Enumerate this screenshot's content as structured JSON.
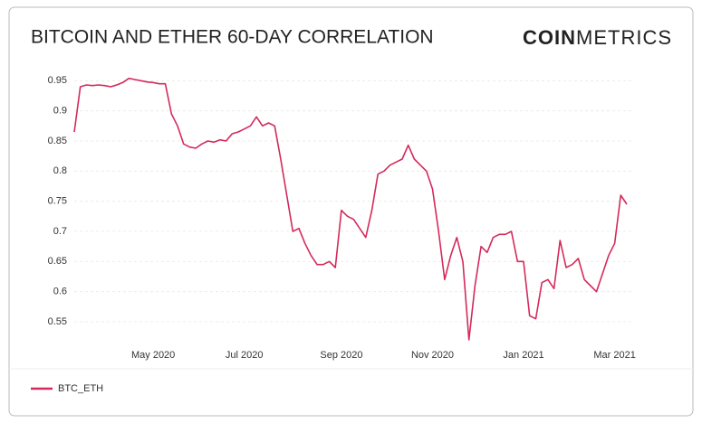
{
  "chart_data": {
    "type": "line",
    "title": "BITCOIN AND ETHER 60-DAY CORRELATION",
    "brand": {
      "bold": "COIN",
      "light": "METRICS"
    },
    "categories": [
      null,
      null,
      null,
      null,
      null,
      null,
      null,
      null,
      null,
      null,
      null,
      null,
      null,
      "May 2020",
      null,
      null,
      null,
      null,
      null,
      null,
      null,
      null,
      null,
      null,
      null,
      null,
      null,
      null,
      "Jul 2020",
      null,
      null,
      null,
      null,
      null,
      null,
      null,
      null,
      null,
      null,
      null,
      null,
      null,
      null,
      null,
      "Sep 2020",
      null,
      null,
      null,
      null,
      null,
      null,
      null,
      null,
      null,
      null,
      null,
      null,
      null,
      null,
      "Nov 2020",
      null,
      null,
      null,
      null,
      null,
      null,
      null,
      null,
      null,
      null,
      null,
      null,
      null,
      null,
      "Jan 2021",
      null,
      null,
      null,
      null,
      null,
      null,
      null,
      null,
      null,
      null,
      null,
      null,
      null,
      null,
      "Mar 2021",
      null,
      null
    ],
    "series": [
      {
        "name": "BTC_ETH",
        "color": "#d42a5b",
        "values": [
          0.865,
          0.94,
          0.943,
          0.942,
          0.943,
          0.942,
          0.94,
          0.943,
          0.947,
          0.954,
          0.952,
          0.95,
          0.948,
          0.947,
          0.945,
          0.945,
          0.895,
          0.875,
          0.845,
          0.84,
          0.838,
          0.845,
          0.85,
          0.848,
          0.852,
          0.85,
          0.862,
          0.865,
          0.87,
          0.875,
          0.89,
          0.875,
          0.88,
          0.875,
          0.82,
          0.76,
          0.7,
          0.705,
          0.68,
          0.66,
          0.645,
          0.645,
          0.65,
          0.64,
          0.735,
          0.725,
          0.72,
          0.705,
          0.69,
          0.735,
          0.795,
          0.8,
          0.81,
          0.815,
          0.82,
          0.843,
          0.82,
          0.81,
          0.8,
          0.77,
          0.7,
          0.62,
          0.66,
          0.69,
          0.65,
          0.52,
          0.61,
          0.675,
          0.665,
          0.69,
          0.695,
          0.695,
          0.7,
          0.65,
          0.65,
          0.56,
          0.555,
          0.615,
          0.62,
          0.605,
          0.685,
          0.64,
          0.645,
          0.655,
          0.62,
          0.61,
          0.6,
          0.63,
          0.66,
          0.68,
          0.76,
          0.745
        ]
      }
    ],
    "ylim": [
      0.52,
      0.97
    ],
    "yticks": [
      0.55,
      0.6,
      0.65,
      0.7,
      0.75,
      0.8,
      0.85,
      0.9,
      0.95
    ],
    "grid": true,
    "legend": "bottom-left"
  }
}
